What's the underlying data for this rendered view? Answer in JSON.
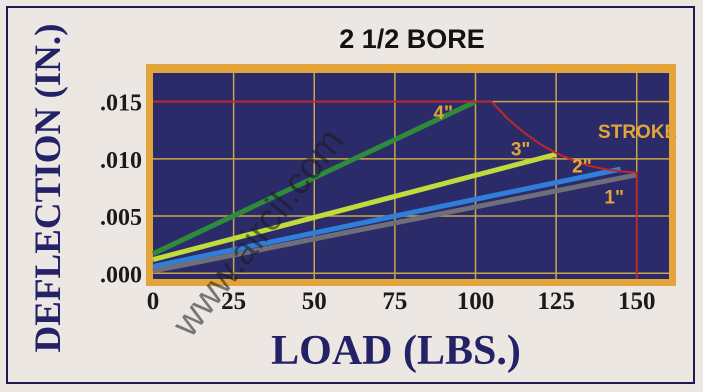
{
  "chart_data": {
    "type": "line",
    "title": "2 1/2 BORE",
    "xlabel": "LOAD (LBS.)",
    "ylabel": "DEFLECTION (IN.)",
    "xlim": [
      0,
      160
    ],
    "ylim": [
      -0.0005,
      0.0175
    ],
    "x_ticks": [
      "0",
      "25",
      "50",
      "75",
      "100",
      "125",
      "150"
    ],
    "x_tick_values": [
      0,
      25,
      50,
      75,
      100,
      125,
      150
    ],
    "y_ticks": [
      ".000",
      ".005",
      ".010",
      ".015"
    ],
    "y_tick_values": [
      0,
      0.005,
      0.01,
      0.015
    ],
    "grid": true,
    "series": [
      {
        "name": "4\"",
        "color": "#2e8b3a",
        "x": [
          0,
          100
        ],
        "y": [
          0.0017,
          0.015
        ]
      },
      {
        "name": "3\"",
        "color": "#bfdc3c",
        "x": [
          0,
          125
        ],
        "y": [
          0.0012,
          0.0104
        ]
      },
      {
        "name": "2\"",
        "color": "#2f7fd8",
        "x": [
          0,
          145
        ],
        "y": [
          0.0006,
          0.0091
        ]
      },
      {
        "name": "1\"",
        "color": "#6f6f7a",
        "x": [
          0,
          150
        ],
        "y": [
          0.0002,
          0.0086
        ]
      }
    ],
    "stroke_limit": {
      "label": "STROKE",
      "color": "#c0272d",
      "x": [
        0,
        105,
        110,
        115,
        120,
        125,
        130,
        135,
        140,
        145,
        150,
        150
      ],
      "y": [
        0.015,
        0.015,
        0.0135,
        0.0123,
        0.0113,
        0.0105,
        0.0099,
        0.0094,
        0.0091,
        0.0089,
        0.0088,
        -0.0005
      ]
    },
    "series_label_positions": [
      {
        "text": "4\"",
        "x": 90,
        "y": 0.0135
      },
      {
        "text": "3\"",
        "x": 114,
        "y": 0.0103
      },
      {
        "text": "2\"",
        "x": 133,
        "y": 0.0088
      },
      {
        "text": "1\"",
        "x": 143,
        "y": 0.0061
      }
    ],
    "stroke_label_position": {
      "x": 138,
      "y": 0.0118
    },
    "colors": {
      "plot_background": "#2c2b6a",
      "plot_border": "#e3a53a",
      "grid": "#c9a64a",
      "label": "#e3a53a",
      "axis_text": "#232266"
    }
  },
  "watermark": "www.aircil.com"
}
